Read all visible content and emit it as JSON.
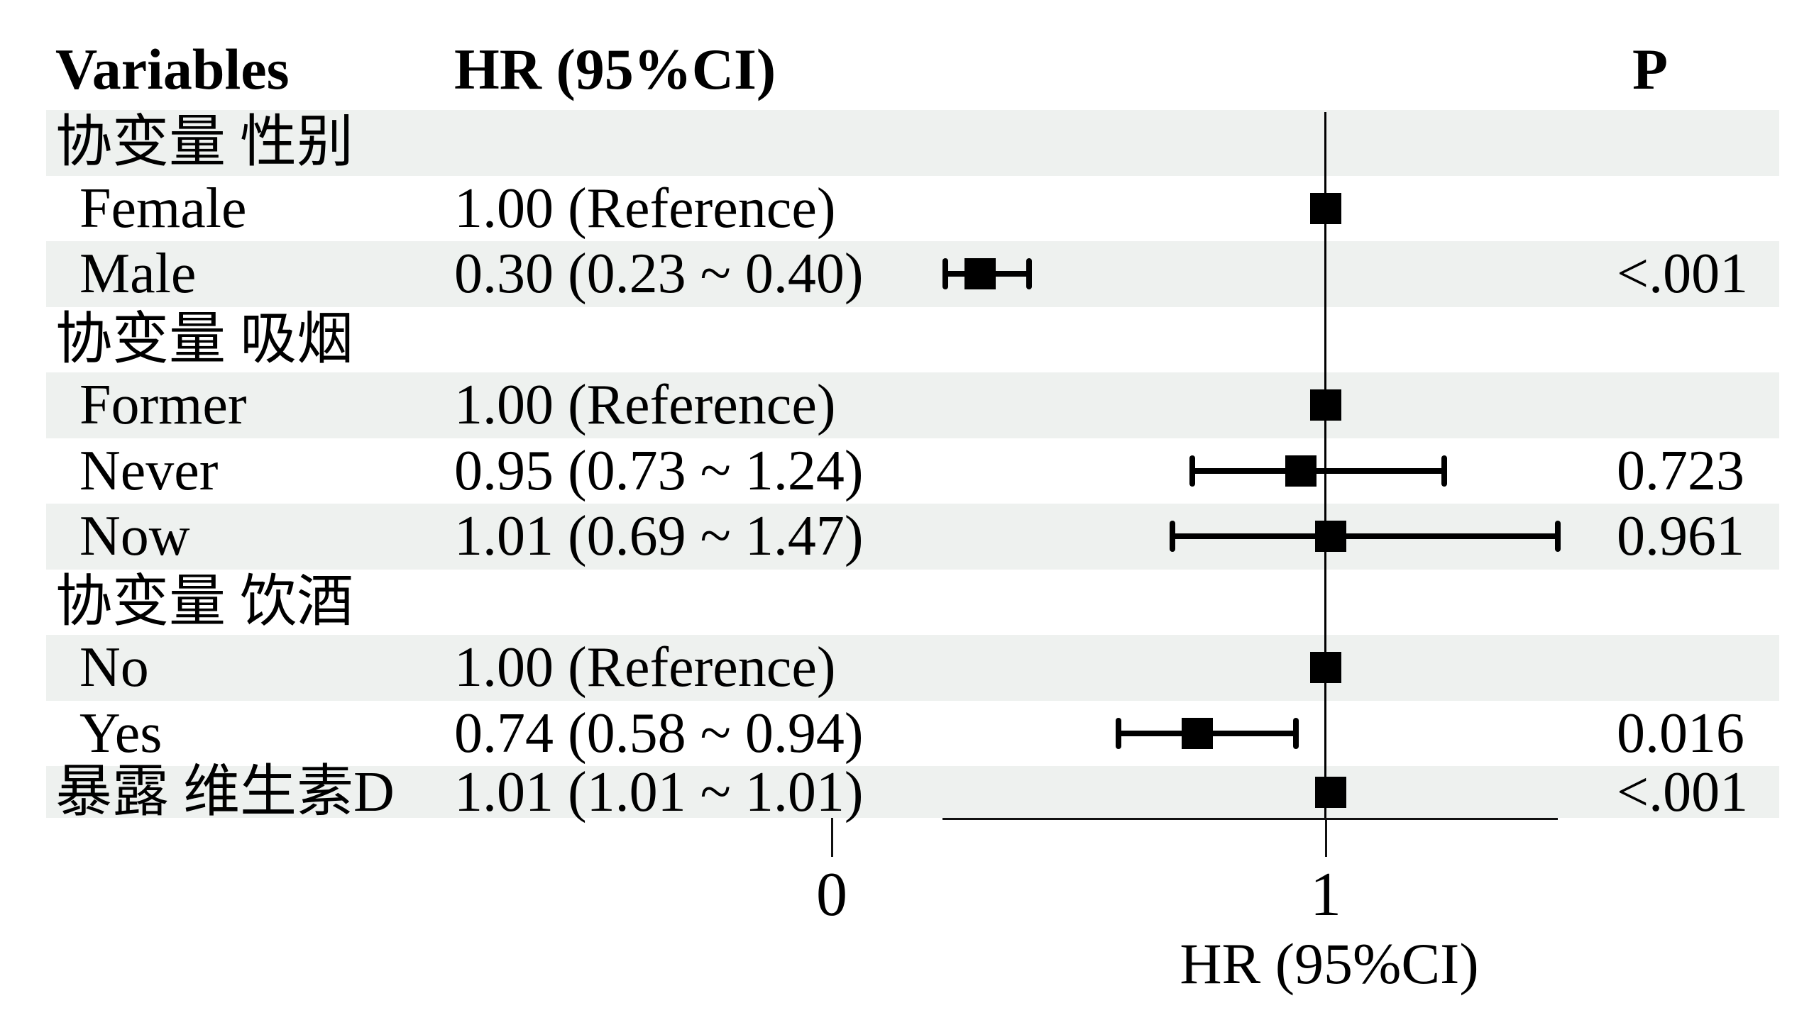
{
  "figure": {
    "headers": {
      "variables": "Variables",
      "hr": "HR (95%CI)",
      "p": "P"
    },
    "axis": {
      "title": "HR (95%CI)",
      "ticks": [
        {
          "label": "0",
          "hr": 0
        },
        {
          "label": "1",
          "hr": 1
        }
      ],
      "reference_hr": 1
    },
    "colors": {
      "stripe": "#eef1ef",
      "ink": "#000000"
    },
    "rows": [
      {
        "label": "协变量 性别",
        "indent": false,
        "shaded": true,
        "hr_text": "",
        "p": "",
        "hr": null,
        "lo": null,
        "hi": null
      },
      {
        "label": "Female",
        "indent": true,
        "shaded": false,
        "hr_text": "1.00 (Reference)",
        "p": "",
        "hr": 1.0,
        "lo": null,
        "hi": null
      },
      {
        "label": "Male",
        "indent": true,
        "shaded": true,
        "hr_text": "0.30 (0.23 ~ 0.40)",
        "p": "<.001",
        "hr": 0.3,
        "lo": 0.23,
        "hi": 0.4
      },
      {
        "label": "协变量 吸烟",
        "indent": false,
        "shaded": false,
        "hr_text": "",
        "p": "",
        "hr": null,
        "lo": null,
        "hi": null
      },
      {
        "label": "Former",
        "indent": true,
        "shaded": true,
        "hr_text": "1.00 (Reference)",
        "p": "",
        "hr": 1.0,
        "lo": null,
        "hi": null
      },
      {
        "label": "Never",
        "indent": true,
        "shaded": false,
        "hr_text": "0.95 (0.73 ~ 1.24)",
        "p": "0.723",
        "hr": 0.95,
        "lo": 0.73,
        "hi": 1.24
      },
      {
        "label": "Now",
        "indent": true,
        "shaded": true,
        "hr_text": "1.01 (0.69 ~ 1.47)",
        "p": "0.961",
        "hr": 1.01,
        "lo": 0.69,
        "hi": 1.47
      },
      {
        "label": "协变量 饮酒",
        "indent": false,
        "shaded": false,
        "hr_text": "",
        "p": "",
        "hr": null,
        "lo": null,
        "hi": null
      },
      {
        "label": "No",
        "indent": true,
        "shaded": true,
        "hr_text": "1.00 (Reference)",
        "p": "",
        "hr": 1.0,
        "lo": null,
        "hi": null
      },
      {
        "label": "Yes",
        "indent": true,
        "shaded": false,
        "hr_text": "0.74 (0.58 ~ 0.94)",
        "p": "0.016",
        "hr": 0.74,
        "lo": 0.58,
        "hi": 0.94
      },
      {
        "label": "暴露 维生素D",
        "indent": false,
        "shaded": true,
        "hr_text": "1.01 (1.01 ~ 1.01)",
        "p": "<.001",
        "hr": 1.01,
        "lo": 1.01,
        "hi": 1.01
      }
    ]
  },
  "chart_data": {
    "type": "scatter",
    "subtype": "forest-plot",
    "title": "",
    "xlabel": "HR (95%CI)",
    "ylabel": "",
    "xticks": [
      0,
      1
    ],
    "axis_segment_hr_range": [
      0.22,
      1.47
    ],
    "reference_line_hr": 1,
    "legend": "none",
    "grid": "off",
    "columns": [
      "Variables",
      "HR (95%CI)",
      "P"
    ],
    "rows": [
      {
        "group": "协变量 性别",
        "variable": "协变量 性别",
        "hr": null,
        "ci_low": null,
        "ci_high": null,
        "hr_text": "",
        "p": ""
      },
      {
        "group": "协变量 性别",
        "variable": "Female",
        "hr": 1.0,
        "ci_low": null,
        "ci_high": null,
        "hr_text": "1.00 (Reference)",
        "p": ""
      },
      {
        "group": "协变量 性别",
        "variable": "Male",
        "hr": 0.3,
        "ci_low": 0.23,
        "ci_high": 0.4,
        "hr_text": "0.30 (0.23 ~ 0.40)",
        "p": "<.001"
      },
      {
        "group": "协变量 吸烟",
        "variable": "协变量 吸烟",
        "hr": null,
        "ci_low": null,
        "ci_high": null,
        "hr_text": "",
        "p": ""
      },
      {
        "group": "协变量 吸烟",
        "variable": "Former",
        "hr": 1.0,
        "ci_low": null,
        "ci_high": null,
        "hr_text": "1.00 (Reference)",
        "p": ""
      },
      {
        "group": "协变量 吸烟",
        "variable": "Never",
        "hr": 0.95,
        "ci_low": 0.73,
        "ci_high": 1.24,
        "hr_text": "0.95 (0.73 ~ 1.24)",
        "p": "0.723"
      },
      {
        "group": "协变量 吸烟",
        "variable": "Now",
        "hr": 1.01,
        "ci_low": 0.69,
        "ci_high": 1.47,
        "hr_text": "1.01 (0.69 ~ 1.47)",
        "p": "0.961"
      },
      {
        "group": "协变量 饮酒",
        "variable": "协变量 饮酒",
        "hr": null,
        "ci_low": null,
        "ci_high": null,
        "hr_text": "",
        "p": ""
      },
      {
        "group": "协变量 饮酒",
        "variable": "No",
        "hr": 1.0,
        "ci_low": null,
        "ci_high": null,
        "hr_text": "1.00 (Reference)",
        "p": ""
      },
      {
        "group": "协变量 饮酒",
        "variable": "Yes",
        "hr": 0.74,
        "ci_low": 0.58,
        "ci_high": 0.94,
        "hr_text": "0.74 (0.58 ~ 0.94)",
        "p": "0.016"
      },
      {
        "group": "暴露",
        "variable": "暴露 维生素D",
        "hr": 1.01,
        "ci_low": 1.01,
        "ci_high": 1.01,
        "hr_text": "1.01 (1.01 ~ 1.01)",
        "p": "<.001"
      }
    ]
  }
}
